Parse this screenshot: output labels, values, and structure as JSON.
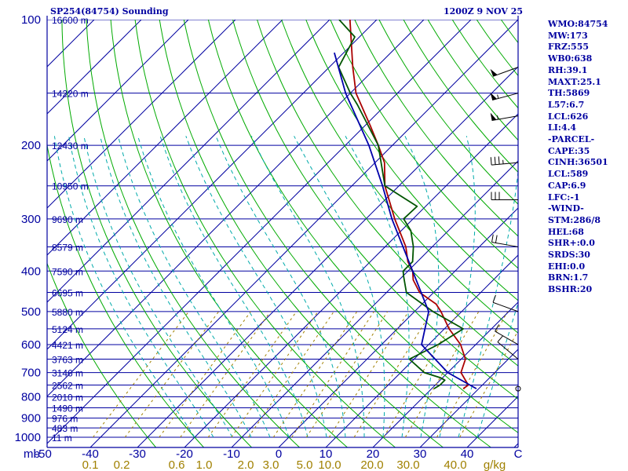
{
  "header": {
    "station": "SP254(84754) Sounding",
    "time": "1200Z  9 NOV 25"
  },
  "stats": [
    "WMO:84754",
    "MW:173",
    "FRZ:555",
    "WB0:638",
    "RH:39.1",
    "MAXT:25.1",
    "TH:5869",
    "L57:6.7",
    "LCL:626",
    "LI:4.4",
    "-PARCEL-",
    "CAPE:35",
    "CINH:36501",
    "LCL:589",
    "CAP:6.9",
    "LFC:-1",
    "-WIND-",
    "STM:286/8",
    "HEL:68",
    "SHR+:0.0",
    "SRDS:30",
    "EHI:0.0",
    "BRN:1.7",
    "BSHR:20"
  ],
  "colors": {
    "axis": "#0000a0",
    "isotherm": "#0000a0",
    "dry_adiabat": "#00aa00",
    "mixing_ratio": "#a08000",
    "moist_adiabat": "#00aaaa",
    "temperature": "#aa0000",
    "dewpoint": "#005500",
    "parcel": "#0000aa",
    "wind": "#000000"
  },
  "chart_data": {
    "type": "skew-t",
    "title": "SP254(84754) Sounding",
    "time": "1200Z  9 NOV 25",
    "pressure_ticks": [
      "100",
      "200",
      "300",
      "400",
      "500",
      "600",
      "700",
      "800",
      "900",
      "1000"
    ],
    "pressure_values": [
      100,
      200,
      300,
      400,
      500,
      600,
      700,
      800,
      900,
      1000
    ],
    "pressure_axis_label": "mb",
    "temperature_axis": {
      "labels": [
        "-50",
        "-40",
        "-30",
        "-20",
        "-10",
        "0",
        "10",
        "20",
        "30",
        "40",
        "C"
      ],
      "values": [
        -50,
        -40,
        -30,
        -20,
        -10,
        0,
        10,
        20,
        30,
        40
      ],
      "range": [
        -50,
        50
      ]
    },
    "mixing_ratio_axis": {
      "labels": [
        "0.1",
        "0.2",
        "0.6",
        "1.0",
        "2.0",
        "3.0",
        "5.0",
        "10.0",
        "20.0",
        "30.0",
        "40.0"
      ],
      "values": [
        0.1,
        0.2,
        0.6,
        1.0,
        2.0,
        3.0,
        5.0,
        10.0,
        20.0,
        30.0,
        40.0
      ],
      "unit": "g/kg"
    },
    "height_labels": [
      {
        "label": "16600 m",
        "p": 100
      },
      {
        "label": "14220 m",
        "p": 150
      },
      {
        "label": "12430 m",
        "p": 200
      },
      {
        "label": "10950 m",
        "p": 250
      },
      {
        "label": "9690 m",
        "p": 300
      },
      {
        "label": "8579 m",
        "p": 350
      },
      {
        "label": "7590 m",
        "p": 400
      },
      {
        "label": "6695 m",
        "p": 450
      },
      {
        "label": "5880 m",
        "p": 500
      },
      {
        "label": "5124 m",
        "p": 550
      },
      {
        "label": "4421 m",
        "p": 600
      },
      {
        "label": "3763 m",
        "p": 650
      },
      {
        "label": "3146 m",
        "p": 700
      },
      {
        "label": "2562 m",
        "p": 750
      },
      {
        "label": "2010 m",
        "p": 800
      },
      {
        "label": "1490 m",
        "p": 850
      },
      {
        "label": "976 m",
        "p": 900
      },
      {
        "label": "483 m",
        "p": 950
      },
      {
        "label": "11 m",
        "p": 1000
      }
    ],
    "series": [
      {
        "name": "temperature",
        "p": [
          765,
          750,
          700,
          650,
          600,
          550,
          500,
          480,
          450,
          420,
          400,
          380,
          350,
          300,
          250,
          220,
          200,
          180,
          150,
          130,
          100
        ],
        "t": [
          26.7,
          27.0,
          22.8,
          20.9,
          16.8,
          11.0,
          5.6,
          3.0,
          -3.0,
          -7.0,
          -9.0,
          -12.0,
          -15.6,
          -23.9,
          -33.0,
          -38.0,
          -43.0,
          -48.7,
          -58.8,
          -65.0,
          -75.7
        ]
      },
      {
        "name": "dewpoint",
        "p": [
          765,
          750,
          730,
          720,
          700,
          650,
          600,
          550,
          500,
          450,
          410,
          400,
          380,
          350,
          320,
          300,
          280,
          250,
          200,
          160,
          150,
          130,
          110,
          100
        ],
        "t": [
          20.5,
          21.0,
          21.0,
          19.5,
          15.0,
          9.0,
          12.0,
          14.0,
          3.9,
          -5.8,
          -10.0,
          -11.0,
          -11.0,
          -14.0,
          -18.0,
          -22.0,
          -21.8,
          -33.0,
          -43.0,
          -56.0,
          -60.0,
          -68.0,
          -71.0,
          -78.0
        ]
      },
      {
        "name": "parcel",
        "p": [
          765,
          700,
          600,
          500,
          400,
          300,
          250,
          200,
          150,
          120
        ],
        "t": [
          29.5,
          20.0,
          8.5,
          3.0,
          -9.0,
          -24.5,
          -33.5,
          -45.0,
          -61.0,
          -72.0
        ]
      }
    ],
    "wind_barbs": [
      {
        "p": 130,
        "dir": 250,
        "speed_kt": 50
      },
      {
        "p": 150,
        "dir": 255,
        "speed_kt": 55
      },
      {
        "p": 170,
        "dir": 260,
        "speed_kt": 55
      },
      {
        "p": 220,
        "dir": 265,
        "speed_kt": 35
      },
      {
        "p": 270,
        "dir": 270,
        "speed_kt": 30
      },
      {
        "p": 350,
        "dir": 280,
        "speed_kt": 20
      },
      {
        "p": 500,
        "dir": 290,
        "speed_kt": 10
      },
      {
        "p": 600,
        "dir": 300,
        "speed_kt": 10
      },
      {
        "p": 650,
        "dir": 310,
        "speed_kt": 10
      },
      {
        "p": 765,
        "dir": 0,
        "speed_kt": 0
      }
    ]
  }
}
